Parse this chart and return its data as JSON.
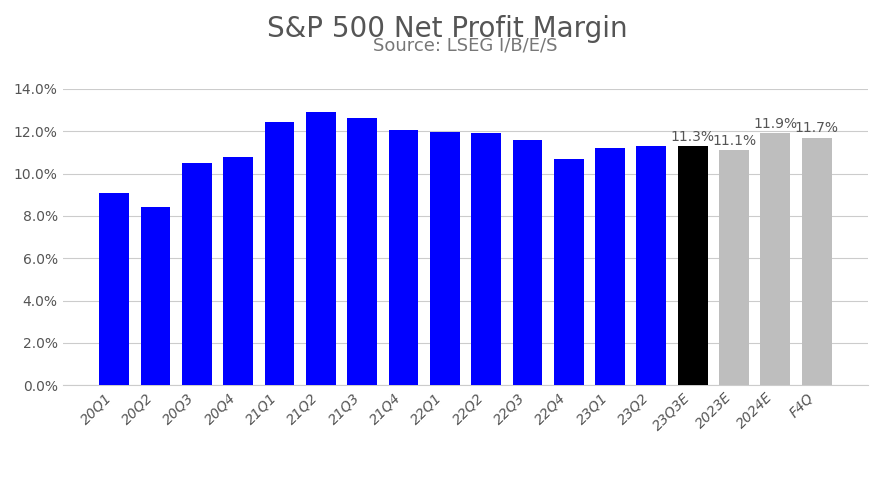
{
  "title": "S&P 500 Net Profit Margin",
  "subtitle": "Source: LSEG I/B/E/S",
  "categories": [
    "20Q1",
    "20Q2",
    "20Q3",
    "20Q4",
    "21Q1",
    "21Q2",
    "21Q3",
    "21Q4",
    "22Q1",
    "22Q2",
    "22Q3",
    "22Q4",
    "23Q1",
    "23Q2",
    "23Q3E",
    "2023E",
    "2024E",
    "F4Q"
  ],
  "values": [
    9.1,
    8.4,
    10.5,
    10.8,
    12.45,
    12.9,
    12.65,
    12.05,
    11.95,
    11.9,
    11.6,
    10.7,
    11.2,
    11.3,
    11.3,
    11.1,
    11.9,
    11.7
  ],
  "bar_colors": [
    "#0000FF",
    "#0000FF",
    "#0000FF",
    "#0000FF",
    "#0000FF",
    "#0000FF",
    "#0000FF",
    "#0000FF",
    "#0000FF",
    "#0000FF",
    "#0000FF",
    "#0000FF",
    "#0000FF",
    "#0000FF",
    "#000000",
    "#BEBEBE",
    "#BEBEBE",
    "#BEBEBE"
  ],
  "annotated_indices": [
    14,
    15,
    16,
    17
  ],
  "annotated_labels": [
    "11.3%",
    "11.1%",
    "11.9%",
    "11.7%"
  ],
  "ylim": [
    0,
    14.0
  ],
  "yticks": [
    0.0,
    2.0,
    4.0,
    6.0,
    8.0,
    10.0,
    12.0,
    14.0
  ],
  "background_color": "#FFFFFF",
  "grid_color": "#CCCCCC",
  "title_fontsize": 20,
  "subtitle_fontsize": 13,
  "tick_fontsize": 10,
  "annotation_fontsize": 10,
  "title_color": "#555555",
  "subtitle_color": "#777777",
  "tick_color": "#555555",
  "bar_width": 0.72
}
